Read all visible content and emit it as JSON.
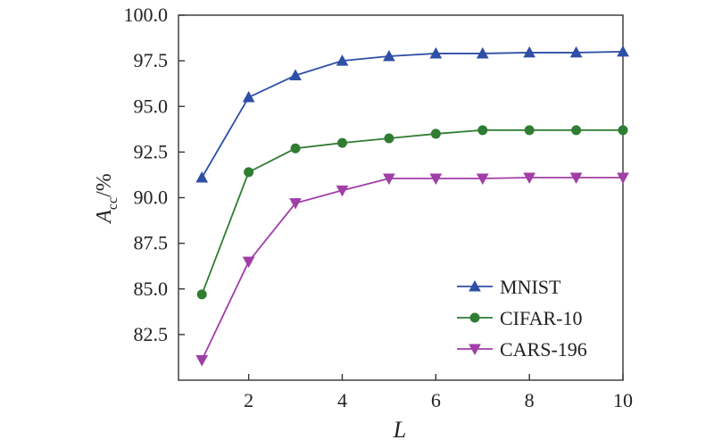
{
  "chart_data": {
    "type": "line",
    "title": "",
    "xlabel": "L",
    "ylabel_main": "A",
    "ylabel_sub": "cc",
    "ylabel_suffix": "/%",
    "xlim": [
      0.5,
      10
    ],
    "ylim": [
      80.0,
      100.0
    ],
    "xticks": [
      2,
      4,
      6,
      8,
      10
    ],
    "xtick_labels": [
      "2",
      "4",
      "6",
      "8",
      "10"
    ],
    "yticks": [
      82.5,
      85.0,
      87.5,
      90.0,
      92.5,
      95.0,
      97.5,
      100.0
    ],
    "ytick_labels": [
      "82.5",
      "85.0",
      "87.5",
      "90.0",
      "92.5",
      "95.0",
      "97.5",
      "100.0"
    ],
    "grid": false,
    "legend_position": "bottom-right",
    "x": [
      1,
      2,
      3,
      4,
      5,
      6,
      7,
      8,
      9,
      10
    ],
    "series": [
      {
        "name": "MNIST",
        "color": "#2f4fa6",
        "marker": "triangle-up",
        "values": [
          91.1,
          95.5,
          96.7,
          97.5,
          97.75,
          97.9,
          97.9,
          97.95,
          97.95,
          98.0
        ]
      },
      {
        "name": "CIFAR-10",
        "color": "#2e7d32",
        "marker": "circle",
        "values": [
          84.7,
          91.4,
          92.7,
          93.0,
          93.25,
          93.5,
          93.7,
          93.7,
          93.7,
          93.7
        ]
      },
      {
        "name": "CARS-196",
        "color": "#a03ea8",
        "marker": "triangle-down",
        "values": [
          81.1,
          86.5,
          89.7,
          90.4,
          91.05,
          91.05,
          91.05,
          91.1,
          91.1,
          91.1
        ]
      }
    ]
  }
}
